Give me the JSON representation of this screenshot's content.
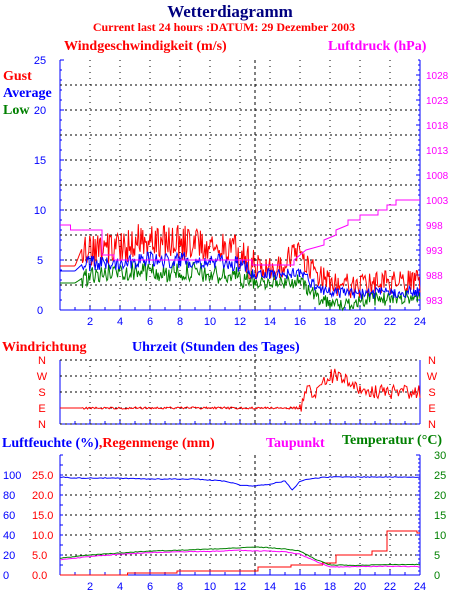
{
  "chart_data": {
    "title": "Wetterdiagramm",
    "subtitle": "Current last 24 hours :DATUM: 29 Dezember 2003",
    "x": {
      "label": "Uhrzeit (Stunden des Tages)",
      "range": [
        0,
        24
      ],
      "ticks": [
        "2",
        "4",
        "6",
        "8",
        "10",
        "12",
        "14",
        "16",
        "18",
        "20",
        "22",
        "24"
      ]
    },
    "marker_hour": 13,
    "grid": true,
    "panels": [
      {
        "type": "line",
        "left_axis": {
          "label": "Windgeschwindigkeit (m/s)",
          "range": [
            0,
            25
          ],
          "ticks": [
            "0",
            "5",
            "10",
            "15",
            "20",
            "25"
          ]
        },
        "right_axis": {
          "label": "Luftdruck (hPa)",
          "range": [
            981,
            1031
          ],
          "ticks": [
            "983",
            "988",
            "993",
            "998",
            "1003",
            "1008",
            "1013",
            "1018",
            "1023",
            "1028"
          ]
        },
        "legend": [
          "Gust",
          "Average",
          "Low"
        ],
        "series": [
          {
            "name": "Gust",
            "axis": "left",
            "color": "#ff0000",
            "x": [
              0,
              1,
              1.5,
              2,
              3,
              4,
              5,
              6,
              7,
              8,
              9,
              10,
              11,
              12,
              13,
              14,
              15,
              15.5,
              16,
              17,
              18,
              19,
              20,
              21,
              22,
              23,
              24
            ],
            "y": [
              4.4,
              4.4,
              6.3,
              6.1,
              5.8,
              6.2,
              7.0,
              6.8,
              6.9,
              6.8,
              6.7,
              6.3,
              6.2,
              5.7,
              4.3,
              4.3,
              4.3,
              6.0,
              5.4,
              3.8,
              2.7,
              2.5,
              2.3,
              2.6,
              2.7,
              2.7,
              2.7
            ]
          },
          {
            "name": "Average",
            "axis": "left",
            "color": "#0000ff",
            "x": [
              0,
              1,
              1.5,
              2,
              3,
              4,
              5,
              6,
              7,
              8,
              9,
              10,
              11,
              12,
              13,
              14,
              15,
              16,
              17,
              18,
              19,
              20,
              21,
              22,
              23,
              24
            ],
            "y": [
              3.9,
              3.9,
              4.6,
              4.6,
              4.6,
              4.8,
              5.0,
              5.1,
              4.9,
              5.0,
              5.0,
              4.8,
              4.8,
              4.5,
              3.6,
              3.6,
              3.6,
              3.8,
              2.4,
              1.8,
              1.7,
              1.6,
              1.7,
              1.7,
              1.8,
              1.8
            ]
          },
          {
            "name": "Low",
            "axis": "left",
            "color": "#008000",
            "x": [
              0,
              1,
              1.5,
              2,
              3,
              4,
              5,
              6,
              7,
              8,
              9,
              10,
              11,
              12,
              13,
              14,
              15,
              16,
              17,
              18,
              19,
              20,
              21,
              22,
              23,
              24
            ],
            "y": [
              2.7,
              2.7,
              3.2,
              3.4,
              3.6,
              3.9,
              4.0,
              3.8,
              3.6,
              3.9,
              3.8,
              3.5,
              3.5,
              3.3,
              2.8,
              2.8,
              2.8,
              2.9,
              1.4,
              0.8,
              0.4,
              1.0,
              1.1,
              1.1,
              1.3,
              1.3
            ]
          },
          {
            "name": "Luftdruck",
            "axis": "right",
            "color": "#ff00ff",
            "x": [
              0,
              0.7,
              0.7,
              2.8,
              2.8,
              3.6,
              3.6,
              12.8,
              12.8,
              15.6,
              15.6,
              16.4,
              17.6,
              17.6,
              18.4,
              18.4,
              19.2,
              19.2,
              20.0,
              20.0,
              21.2,
              21.2,
              21.8,
              21.8,
              22.4,
              22.4,
              24
            ],
            "y": [
              998.0,
              998.0,
              997.0,
              997.0,
              992.0,
              992.0,
              991.0,
              991.0,
              990.0,
              990.0,
              991.0,
              993.0,
              994.0,
              995.0,
              996.0,
              997.0,
              998.0,
              999.0,
              999.0,
              1000.0,
              1000.0,
              1001.0,
              1001.0,
              1002.0,
              1002.0,
              1003.0,
              1003.0
            ]
          }
        ]
      },
      {
        "type": "line",
        "title": "Windrichtung",
        "axis_labels": [
          "N",
          "W",
          "S",
          "E",
          "N"
        ],
        "series": [
          {
            "name": "Windrichtung",
            "color": "#ff0000",
            "x": [
              0,
              1.5,
              2,
              4,
              6,
              8,
              10,
              12,
              13,
              14,
              15,
              16,
              16.5,
              17,
              18,
              19,
              20,
              21,
              22,
              23,
              24
            ],
            "y": [
              "E",
              "E",
              "E",
              "E",
              "E",
              "E",
              "E",
              "E",
              "E",
              "E",
              "E",
              "E",
              "S",
              "S",
              "W",
              "W",
              "S",
              "S",
              "S",
              "S",
              "S"
            ]
          }
        ]
      },
      {
        "type": "line",
        "left_axis_1": {
          "label": "Luftfeuchte (%)",
          "range": [
            0,
            120
          ],
          "ticks": [
            "0",
            "20",
            "40",
            "60",
            "80",
            "100"
          ]
        },
        "left_axis_2": {
          "label": "Regenmenge (mm)",
          "range": [
            0,
            30
          ],
          "ticks": [
            "0.0",
            "5.0",
            "10.0",
            "15.0",
            "20.0",
            "25.0"
          ]
        },
        "right_axis": {
          "label": "Temperatur (°C)",
          "range": [
            0,
            30
          ],
          "ticks": [
            "0",
            "5",
            "10",
            "15",
            "20",
            "25",
            "30"
          ]
        },
        "extra_label": "Taupunkt",
        "series": [
          {
            "name": "Luftfeuchte",
            "axis": "left1",
            "color": "#0000ff",
            "x": [
              0,
              1,
              3,
              6,
              9,
              11,
              12,
              13,
              14,
              15,
              15.5,
              16,
              17,
              18,
              20,
              22,
              24
            ],
            "y": [
              98,
              97,
              97,
              96,
              96,
              94,
              90,
              89,
              91,
              94,
              85,
              94,
              97,
              98,
              98,
              98,
              98
            ]
          },
          {
            "name": "Regenmenge",
            "axis": "left2",
            "color": "#ff0000",
            "x": [
              0,
              4.5,
              4.5,
              7.8,
              7.8,
              13.2,
              13.2,
              15.4,
              15.4,
              17.5,
              17.5,
              18.4,
              18.4,
              20.8,
              20.8,
              21.8,
              21.8,
              23.8,
              23.8,
              24
            ],
            "y": [
              0,
              0,
              0.5,
              0.5,
              1,
              1,
              2,
              2,
              2.5,
              2.5,
              3,
              3,
              5,
              5,
              6,
              6,
              11,
              11,
              10.5,
              10.5
            ]
          },
          {
            "name": "Temperatur",
            "axis": "right",
            "color": "#008000",
            "x": [
              0,
              2,
              4,
              6,
              8,
              10,
              12,
              13,
              14,
              15,
              16,
              17,
              18,
              20,
              22,
              24
            ],
            "y": [
              4.2,
              5.0,
              5.5,
              6.0,
              6.2,
              6.5,
              6.8,
              7.0,
              6.8,
              6.5,
              6.0,
              4.0,
              2.5,
              2.4,
              2.6,
              2.6
            ]
          },
          {
            "name": "Taupunkt",
            "axis": "right",
            "color": "#ff00ff",
            "x": [
              0,
              2,
              4,
              6,
              8,
              10,
              12,
              13,
              14,
              15,
              16,
              17,
              18,
              20,
              22,
              24
            ],
            "y": [
              3.8,
              4.6,
              5.2,
              5.6,
              5.8,
              5.9,
              6.2,
              6.0,
              6.0,
              5.8,
              5.2,
              3.5,
              2.0,
              2.1,
              2.2,
              2.1
            ]
          }
        ]
      }
    ]
  },
  "colors": {
    "title": "#000080",
    "subtitle": "#ff0000",
    "wind": "#ff0000",
    "average": "#0000ff",
    "low": "#008000",
    "pressure": "#ff00ff",
    "axis": "#0000ff",
    "grid": "#000000",
    "winddir_label": "#ff0000",
    "time_label": "#0000ff",
    "temp": "#008000"
  }
}
